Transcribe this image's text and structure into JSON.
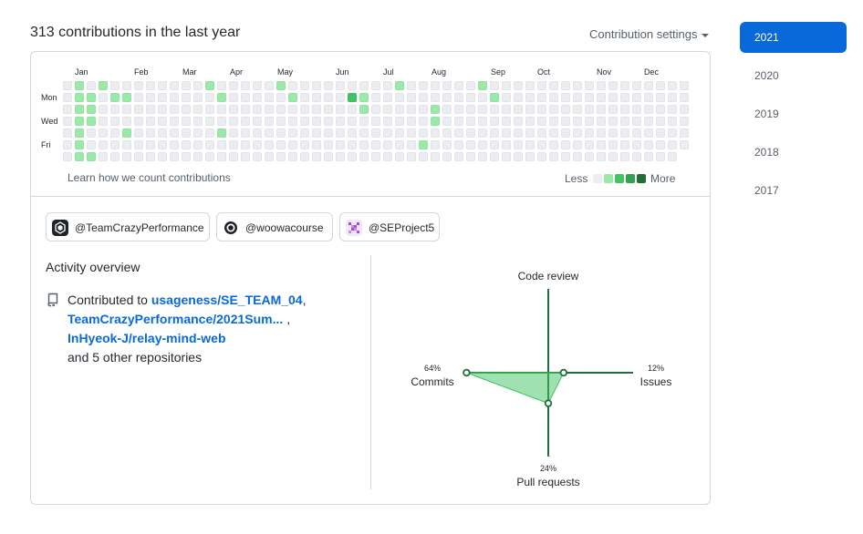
{
  "header": {
    "title": "313 contributions in the last year",
    "settings_label": "Contribution settings"
  },
  "graph": {
    "months": [
      "Jan",
      "Feb",
      "Mar",
      "Apr",
      "May",
      "Jun",
      "Jul",
      "Aug",
      "Sep",
      "Oct",
      "Nov",
      "Dec"
    ],
    "days": [
      "Mon",
      "Wed",
      "Fri"
    ],
    "learn_link": "Learn how we count contributions",
    "legend": {
      "less": "Less",
      "more": "More"
    },
    "colors": [
      "#ebedf0",
      "#9be9a8",
      "#40c463",
      "#30a14e",
      "#216e39"
    ],
    "weeks": [
      "0000000",
      "1111111",
      "0111001",
      "1000000",
      "0100000",
      "0100100",
      "0000000",
      "0000000",
      "0000000",
      "0000000",
      "0000000",
      "0000000",
      "1000000",
      "0100100",
      "0000000",
      "0000000",
      "0000000",
      "0000000",
      "1000000",
      "0100000",
      "0000000",
      "0000000",
      "0000000",
      "0000000",
      "0200000",
      "0110000",
      "0000000",
      "0000000",
      "1000000",
      "0000000",
      "0000010",
      "0011000",
      "0000000",
      "0000000",
      "0000000",
      "1000000",
      "0100000",
      "0000000",
      "0000000",
      "0000000",
      "0000000",
      "0000000",
      "0000000",
      "0000000",
      "0000000",
      "0000000",
      "0000000",
      "0000000",
      "0000000",
      "0000000",
      "0000000",
      "0000000",
      "0000000"
    ]
  },
  "organizations": [
    {
      "name": "@TeamCrazyPerformance",
      "avatar": "dark-logo"
    },
    {
      "name": "@woowacourse",
      "avatar": "circle-logo"
    },
    {
      "name": "@SEProject5",
      "avatar": "pixel-logo"
    }
  ],
  "activity": {
    "title": "Activity overview",
    "contributed_to": "Contributed to",
    "repos": [
      "usageness/SE_TEAM_04",
      "TeamCrazyPerformance/2021Sum...",
      "InHyeok-J/relay-mind-web"
    ],
    "others": "and 5 other repositories"
  },
  "radar": {
    "code_review": {
      "label": "Code review",
      "pct": ""
    },
    "issues": {
      "label": "Issues",
      "pct": "12%"
    },
    "pull_requests": {
      "label": "Pull requests",
      "pct": "24%"
    },
    "commits": {
      "label": "Commits",
      "pct": "64%"
    }
  },
  "chart_data": {
    "type": "radar",
    "categories": [
      "Code review",
      "Issues",
      "Pull requests",
      "Commits"
    ],
    "values": [
      0,
      12,
      24,
      64
    ],
    "unit": "%"
  },
  "years": [
    {
      "label": "2021",
      "active": true
    },
    {
      "label": "2020",
      "active": false
    },
    {
      "label": "2019",
      "active": false
    },
    {
      "label": "2018",
      "active": false
    },
    {
      "label": "2017",
      "active": false
    }
  ],
  "accent_color": "#0969da",
  "chart_color": "#216e39"
}
